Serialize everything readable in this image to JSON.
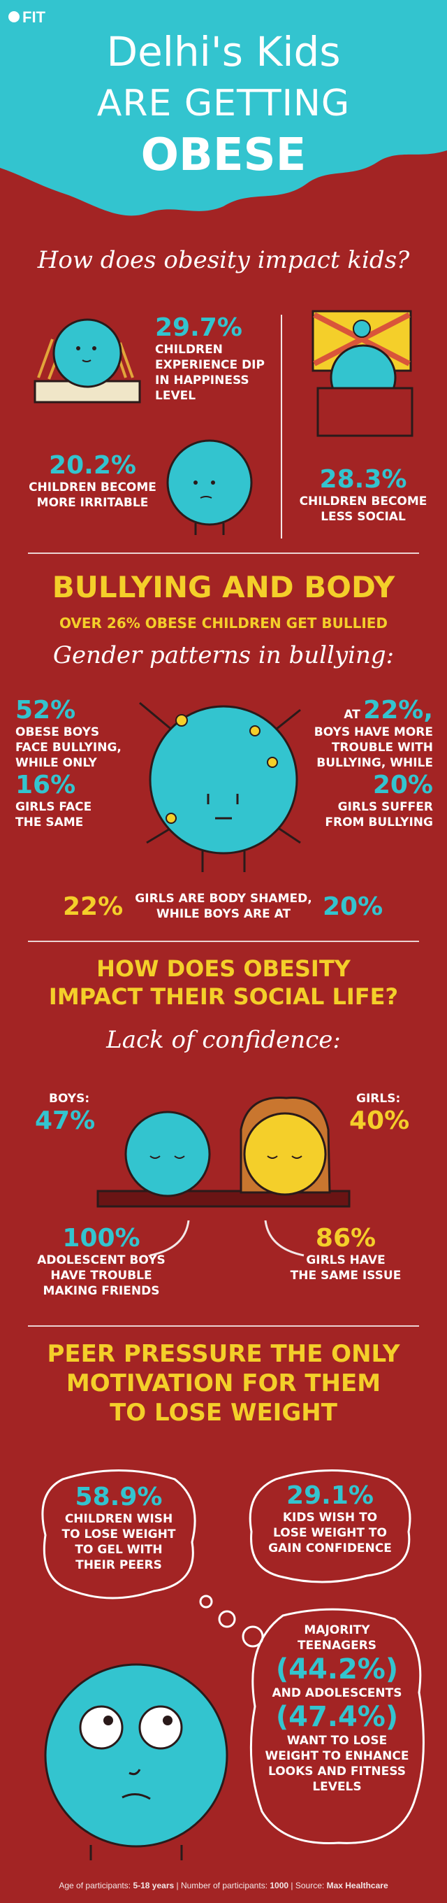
{
  "brand": {
    "logo_text": "FIT"
  },
  "header": {
    "title_line1": "Delhi's Kids",
    "title_line2": "ARE GETTING",
    "title_line3": "OBESE"
  },
  "impact": {
    "heading": "How does obesity impact kids?",
    "stat1": {
      "value": "29.7%",
      "lines": [
        "CHILDREN",
        "EXPERIENCE DIP",
        "IN HAPPINESS",
        "LEVEL"
      ]
    },
    "stat2": {
      "value": "20.2%",
      "lines": [
        "CHILDREN BECOME",
        "MORE IRRITABLE"
      ]
    },
    "stat3": {
      "value": "28.3%",
      "lines": [
        "CHILDREN BECOME",
        "LESS SOCIAL"
      ]
    }
  },
  "bullying": {
    "heading": "BULLYING AND BODY",
    "subheading": "OVER 26% OBESE CHILDREN GET BULLIED",
    "script_heading": "Gender patterns in bullying:",
    "left_value1": "52%",
    "left_lines1": [
      "OBESE BOYS",
      "FACE BULLYING,",
      "WHILE ONLY"
    ],
    "left_value2": "16%",
    "left_lines2": [
      "GIRLS FACE",
      "THE SAME"
    ],
    "right_prefix": "AT",
    "right_value1": "22%,",
    "right_lines1": [
      "BOYS HAVE MORE",
      "TROUBLE WITH",
      "BULLYING, WHILE"
    ],
    "right_value2": "20%",
    "right_lines2": [
      "GIRLS SUFFER",
      "FROM BULLYING"
    ],
    "shame_value1": "22%",
    "shame_text_line1": "GIRLS ARE BODY SHAMED,",
    "shame_text_line2": "WHILE BOYS ARE AT",
    "shame_value2": "20%"
  },
  "social": {
    "heading_line1": "HOW DOES OBESITY",
    "heading_line2": "IMPACT THEIR SOCIAL LIFE?",
    "script_heading": "Lack of confidence:",
    "boys_label": "BOYS:",
    "boys_value": "47%",
    "girls_label": "GIRLS:",
    "girls_value": "40%",
    "adol_value": "100%",
    "adol_lines": [
      "ADOLESCENT BOYS",
      "HAVE TROUBLE",
      "MAKING FRIENDS"
    ],
    "girls2_value": "86%",
    "girls2_lines": [
      "GIRLS HAVE",
      "THE SAME ISSUE"
    ]
  },
  "peer": {
    "heading_line1": "PEER PRESSURE THE ONLY",
    "heading_line2": "MOTIVATION FOR THEM",
    "heading_line3": "TO LOSE WEIGHT",
    "bubble1": {
      "value": "58.9%",
      "lines": [
        "CHILDREN WISH",
        "TO LOSE WEIGHT",
        "TO GEL WITH",
        "THEIR PEERS"
      ]
    },
    "bubble2": {
      "value": "29.1%",
      "lines": [
        "KIDS WISH TO",
        "LOSE WEIGHT TO",
        "GAIN CONFIDENCE"
      ]
    },
    "bubble3": {
      "lines_top": [
        "MAJORITY",
        "TEENAGERS"
      ],
      "value1": "(44.2%)",
      "mid": "AND ADOLESCENTS",
      "value2": "(47.4%)",
      "lines_bottom": [
        "WANT TO LOSE",
        "WEIGHT TO ENHANCE",
        "LOOKS AND FITNESS",
        "LEVELS"
      ]
    }
  },
  "footer": {
    "age_label": "Age of participants:",
    "age_value": "5-18 years",
    "num_label": "Number of participants:",
    "num_value": "1000",
    "source_label": "Source:",
    "source_value": "Max Healthcare"
  },
  "colors": {
    "background": "#a32424",
    "cyan": "#33c4cf",
    "yellow": "#f4cf2a",
    "dark": "#2a1a1a"
  }
}
